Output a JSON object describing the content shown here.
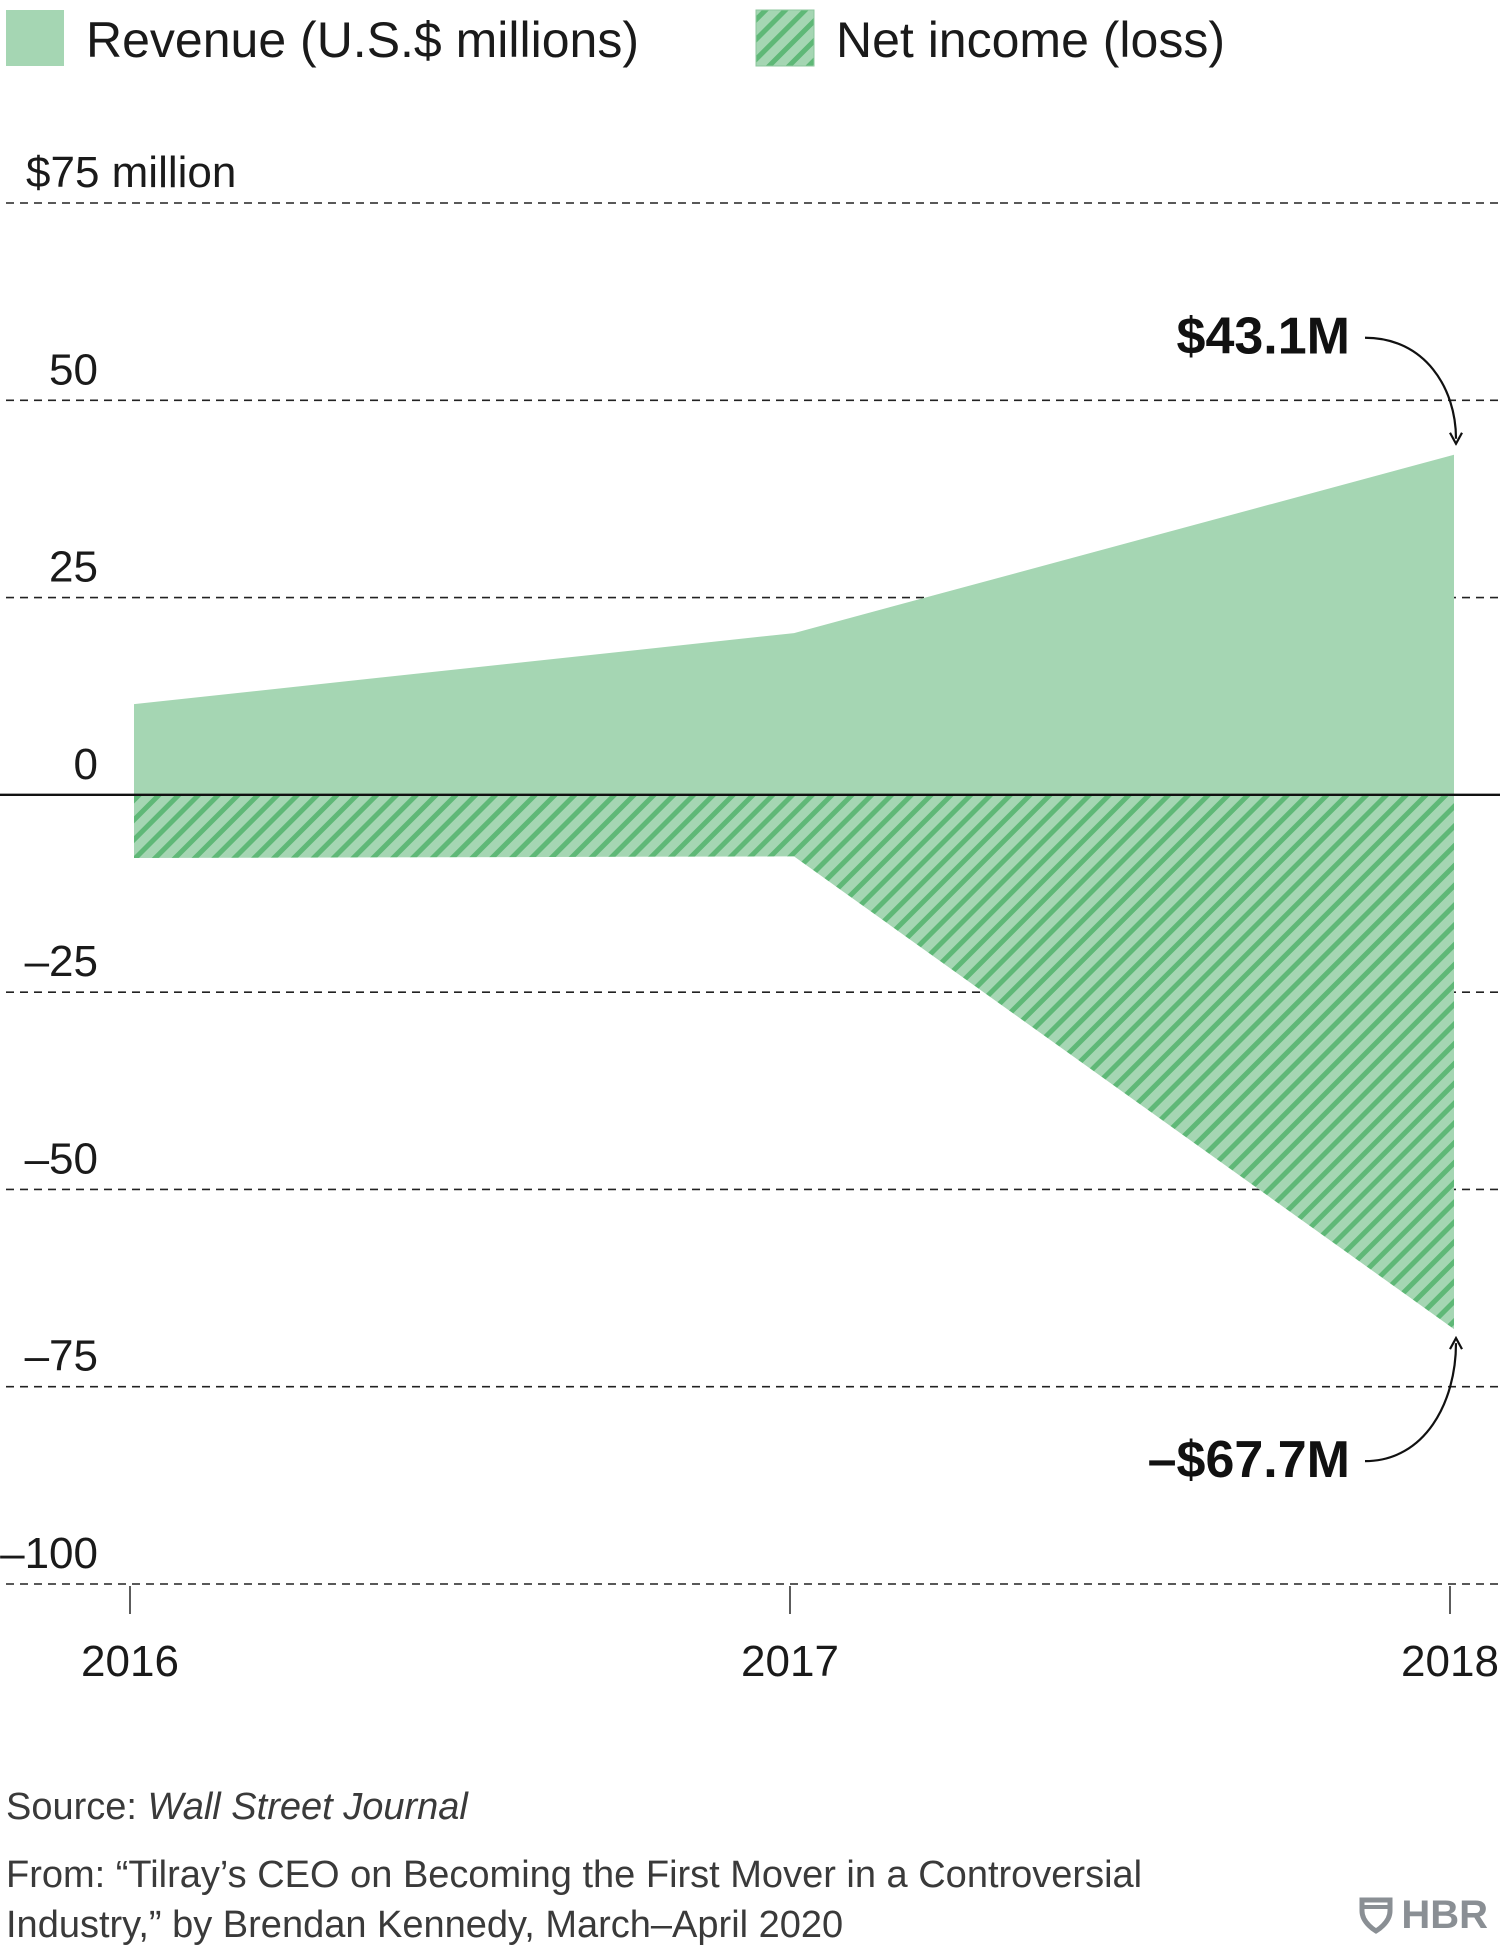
{
  "chart_data": {
    "type": "area",
    "x": [
      "2016",
      "2017",
      "2018"
    ],
    "series": [
      {
        "name": "Revenue (U.S.$ millions)",
        "values": [
          11.5,
          20.5,
          43.1
        ],
        "color": "#a5d6b3",
        "pattern": "solid"
      },
      {
        "name": "Net income (loss)",
        "values": [
          -8.0,
          -7.8,
          -67.7
        ],
        "color": "#a5d6b3",
        "pattern": "hatched"
      }
    ],
    "ylim": [
      -100,
      75
    ],
    "yticks": [
      75,
      50,
      25,
      0,
      -25,
      -50,
      -75,
      -100
    ],
    "ytick_labels": [
      "$75 million",
      "50",
      "25",
      "0",
      "–25",
      "–50",
      "–75",
      "–100"
    ],
    "annotations": [
      {
        "text": "$43.1M",
        "series": 0,
        "point": 2
      },
      {
        "text": "–$67.7M",
        "series": 1,
        "point": 2
      }
    ],
    "grid": "dashed horizontal",
    "legend_position": "top-left"
  },
  "footer": {
    "source_prefix": "Source: ",
    "source_name": "Wall Street Journal",
    "from_text": "From: “Tilray’s CEO on Becoming the First Mover in a Controversial Industry,” by Brendan Kennedy, March–April 2020"
  },
  "logo": {
    "text": "HBR",
    "icon": "hbr-shield-icon"
  }
}
